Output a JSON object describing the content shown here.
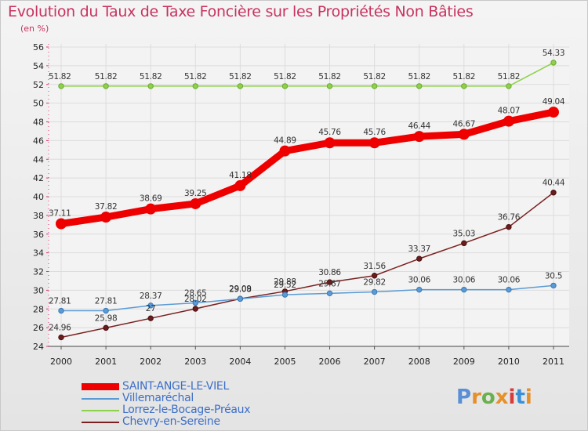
{
  "title": "Evolution du Taux de Taxe Foncière sur les Propriétés Non Bâties",
  "unit_label": "(en %)",
  "logo": {
    "text": "Proxiti",
    "letter_colors": [
      "#5a8fd6",
      "#e6902a",
      "#6ab04c",
      "#e6902a",
      "#d93a3a",
      "#3a8fd9",
      "#e6902a"
    ]
  },
  "chart_data": {
    "type": "line",
    "title": "Evolution du Taux de Taxe Foncière sur les Propriétés Non Bâties",
    "ylabel": "(en %)",
    "xlabel": "",
    "x": [
      "2000",
      "2001",
      "2002",
      "2003",
      "2004",
      "2005",
      "2006",
      "2007",
      "2008",
      "2009",
      "2010",
      "2011"
    ],
    "ylim": [
      24,
      56
    ],
    "yticks": [
      24,
      26,
      28,
      30,
      32,
      34,
      36,
      38,
      40,
      42,
      44,
      46,
      48,
      50,
      52,
      54,
      56
    ],
    "grid": true,
    "legend_position": "bottom-left",
    "series": [
      {
        "name": "SAINT-ANGE-LE-VIEL",
        "color": "#ee0000",
        "values": [
          37.11,
          37.82,
          38.69,
          39.25,
          41.18,
          44.89,
          45.76,
          45.76,
          46.44,
          46.67,
          48.07,
          49.04
        ],
        "labels": [
          "37.11",
          "37.82",
          "38.69",
          "39.25",
          "41.18",
          "44.89",
          "45.76",
          "45.76",
          "46.44",
          "46.67",
          "48.07",
          "49.04"
        ]
      },
      {
        "name": "Villemaréchal",
        "color": "#5b9bd5",
        "values": [
          27.81,
          27.81,
          28.37,
          28.65,
          29.08,
          29.52,
          29.67,
          29.82,
          30.06,
          30.06,
          30.06,
          30.5
        ],
        "labels": [
          "27.81",
          "27.81",
          "28.37",
          "28.65",
          "29.08",
          "29.52",
          "29.67",
          "29.82",
          "30.06",
          "30.06",
          "30.06",
          "30.5"
        ]
      },
      {
        "name": "Lorrez-le-Bocage-Préaux",
        "color": "#8ed14a",
        "values": [
          51.82,
          51.82,
          51.82,
          51.82,
          51.82,
          51.82,
          51.82,
          51.82,
          51.82,
          51.82,
          51.82,
          54.33
        ],
        "labels": [
          "51.82",
          "51.82",
          "51.82",
          "51.82",
          "51.82",
          "51.82",
          "51.82",
          "51.82",
          "51.82",
          "51.82",
          "51.82",
          "54.33"
        ]
      },
      {
        "name": "Chevry-en-Sereine",
        "color": "#7a2020",
        "values": [
          24.96,
          25.98,
          27,
          28.02,
          29.09,
          29.88,
          30.86,
          31.56,
          33.37,
          35.03,
          36.76,
          40.44
        ],
        "labels": [
          "24.96",
          "25.98",
          "27",
          "28.02",
          "29.09",
          "29.88",
          "30.86",
          "31.56",
          "33.37",
          "35.03",
          "36.76",
          "40.44"
        ]
      }
    ]
  }
}
